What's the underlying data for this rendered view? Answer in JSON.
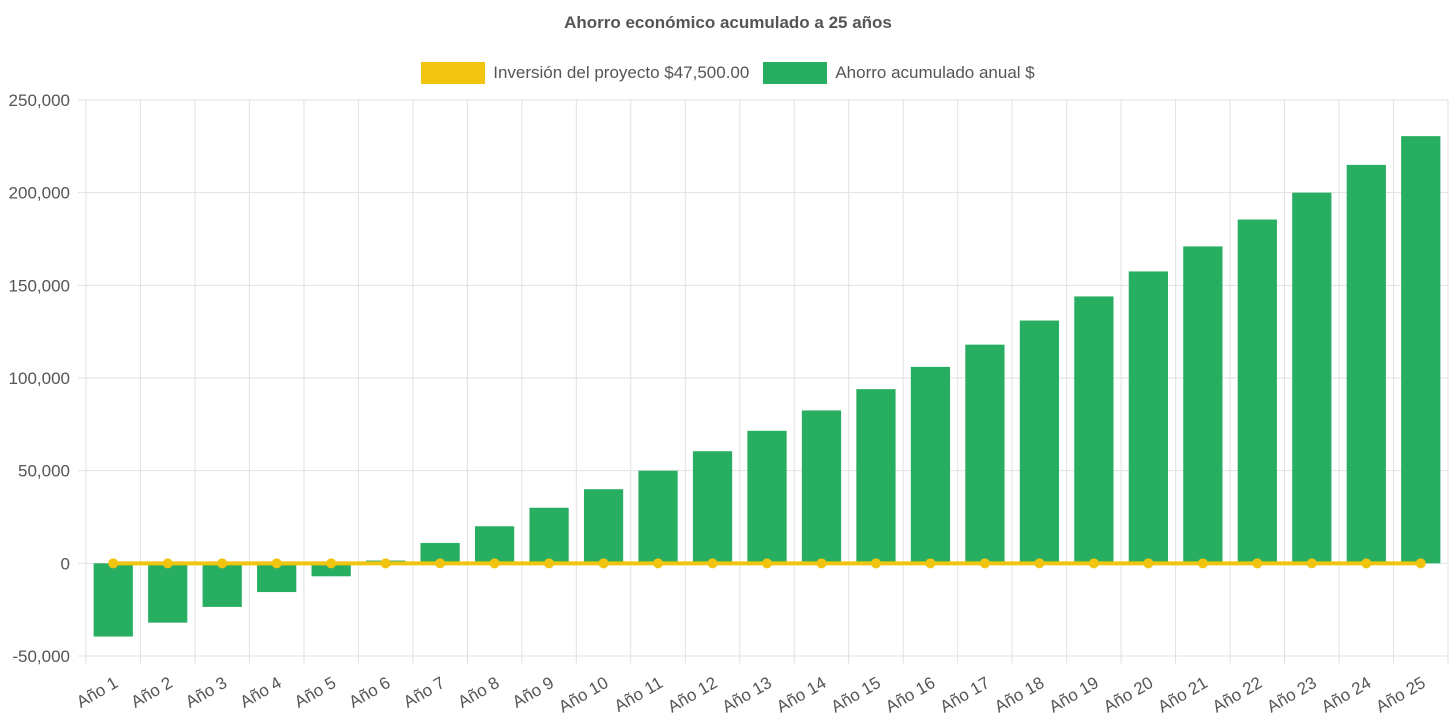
{
  "chart_data": {
    "type": "bar",
    "title": "Ahorro económico acumulado a 25 años",
    "categories": [
      "Año 1",
      "Año 2",
      "Año 3",
      "Año 4",
      "Año 5",
      "Año 6",
      "Año 7",
      "Año 8",
      "Año 9",
      "Año 10",
      "Año 11",
      "Año 12",
      "Año 13",
      "Año 14",
      "Año 15",
      "Año 16",
      "Año 17",
      "Año 18",
      "Año 19",
      "Año 20",
      "Año 21",
      "Año 22",
      "Año 23",
      "Año 24",
      "Año 25"
    ],
    "series": [
      {
        "name": "Inversión del proyecto $47,500.00",
        "type": "line",
        "color": "#f1c40f",
        "values": [
          0,
          0,
          0,
          0,
          0,
          0,
          0,
          0,
          0,
          0,
          0,
          0,
          0,
          0,
          0,
          0,
          0,
          0,
          0,
          0,
          0,
          0,
          0,
          0,
          0
        ]
      },
      {
        "name": "Ahorro acumulado anual $",
        "type": "bar",
        "color": "#27ae60",
        "values": [
          -39500,
          -32000,
          -23500,
          -15500,
          -7000,
          1500,
          11000,
          20000,
          30000,
          40000,
          50000,
          60500,
          71500,
          82500,
          94000,
          106000,
          118000,
          131000,
          144000,
          157500,
          171000,
          185500,
          200000,
          215000,
          230500
        ]
      }
    ],
    "yticks": [
      -50000,
      0,
      50000,
      100000,
      150000,
      200000,
      250000
    ],
    "ytick_labels": [
      "-50,000",
      "0",
      "50,000",
      "100,000",
      "150,000",
      "200,000",
      "250,000"
    ],
    "ylim": [
      -50000,
      250000
    ],
    "grid": true,
    "legend_position": "top-center",
    "xlabel": "",
    "ylabel": ""
  }
}
